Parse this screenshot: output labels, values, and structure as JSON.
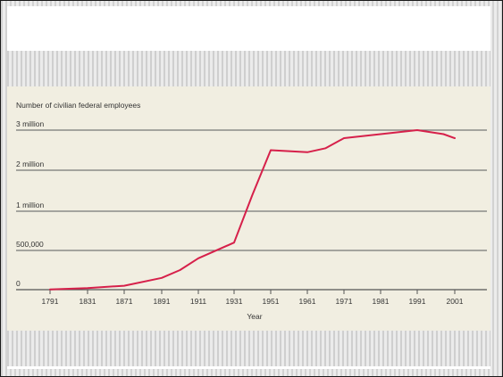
{
  "chart_data": {
    "type": "line",
    "title": "Number of civilian federal employees",
    "xlabel": "Year",
    "ylabel": "",
    "x_tick_labels": [
      "1791",
      "1831",
      "1871",
      "1891",
      "1911",
      "1931",
      "1951",
      "1961",
      "1971",
      "1981",
      "1991",
      "2001"
    ],
    "y_tick_labels": [
      "0",
      "500,000",
      "1 million",
      "2 million",
      "3 million"
    ],
    "grid": true,
    "legend": "none",
    "line_color": "#d6204a",
    "series": [
      {
        "points": [
          {
            "x": "1791",
            "y": 3000
          },
          {
            "x": "1831",
            "y": 20000
          },
          {
            "x": "1871",
            "y": 50000
          },
          {
            "x": "1891",
            "y": 150000
          },
          {
            "x": "1901",
            "y": 250000
          },
          {
            "x": "1911",
            "y": 400000
          },
          {
            "x": "1931",
            "y": 600000
          },
          {
            "x": "1941",
            "y": 1400000
          },
          {
            "x": "1951",
            "y": 2500000
          },
          {
            "x": "1961",
            "y": 2450000
          },
          {
            "x": "1966",
            "y": 2550000
          },
          {
            "x": "1971",
            "y": 2800000
          },
          {
            "x": "1981",
            "y": 2900000
          },
          {
            "x": "1991",
            "y": 3000000
          },
          {
            "x": "1998",
            "y": 2900000
          },
          {
            "x": "2001",
            "y": 2800000
          }
        ]
      }
    ]
  }
}
